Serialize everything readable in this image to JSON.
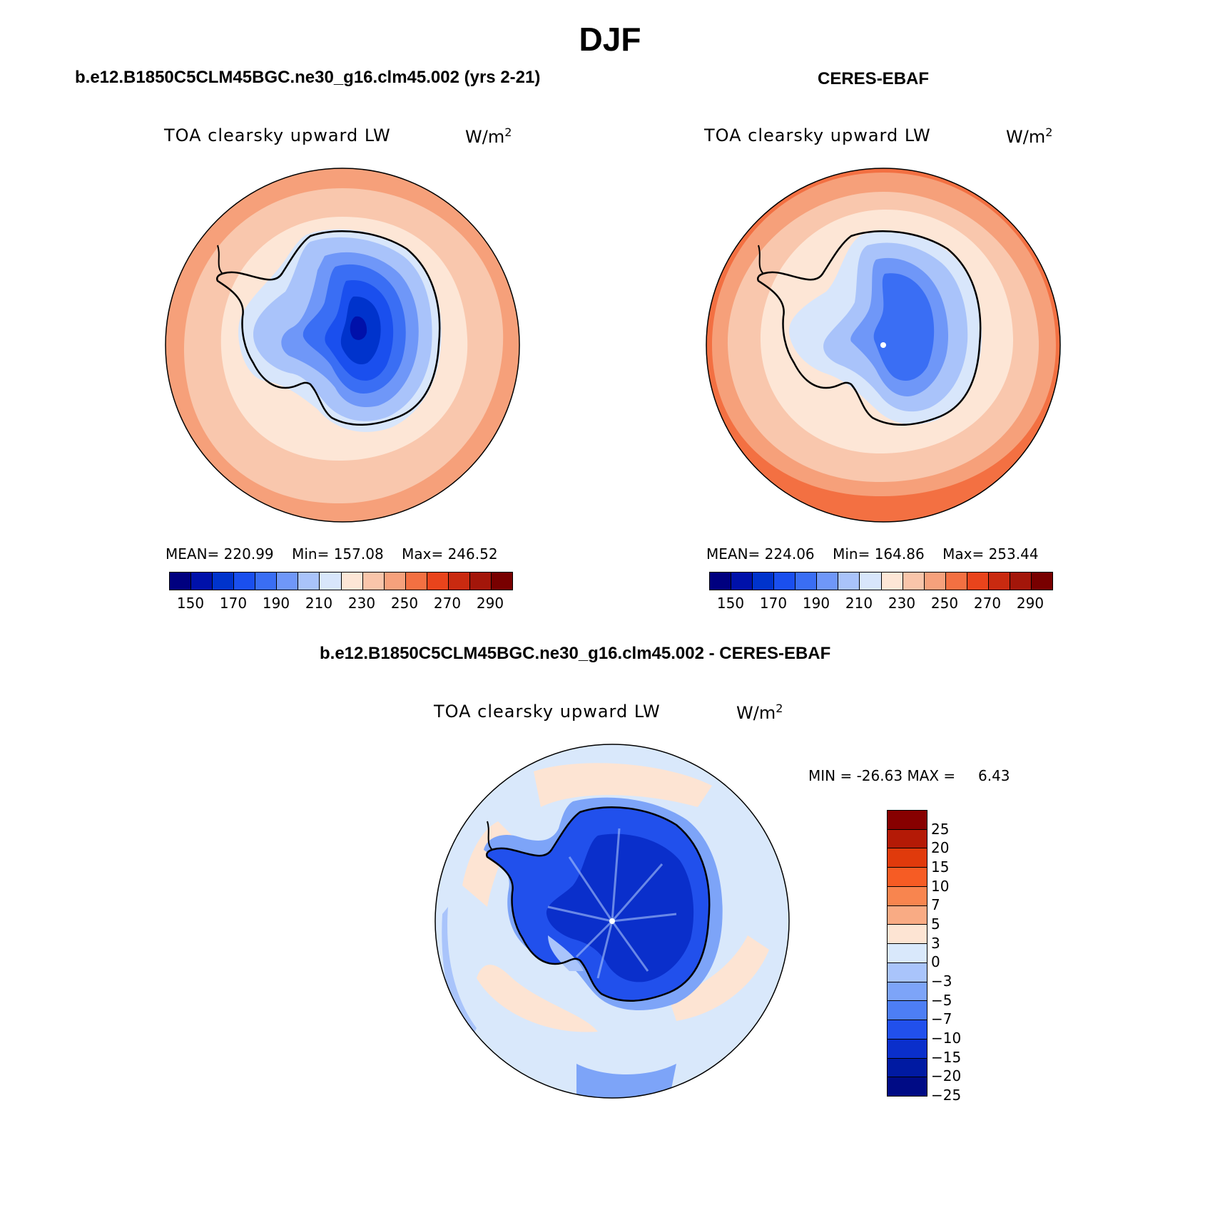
{
  "main_title": "DJF",
  "panels": [
    {
      "title": "b.e12.B1850C5CLM45BGC.ne30_g16.clm45.002 (yrs 2-21)",
      "variable": "TOA clearsky upward LW",
      "units_base": "W/m",
      "units_exp": "2",
      "stats": {
        "mean_label": "MEAN=",
        "mean": "220.99",
        "min_label": "Min=",
        "min": "157.08",
        "max_label": "Max=",
        "max": "246.52"
      }
    },
    {
      "title": "CERES-EBAF",
      "variable": "TOA clearsky upward LW",
      "units_base": "W/m",
      "units_exp": "2",
      "stats": {
        "mean_label": "MEAN=",
        "mean": "224.06",
        "min_label": "Min=",
        "min": "164.86",
        "max_label": "Max=",
        "max": "253.44"
      }
    },
    {
      "title": "b.e12.B1850C5CLM45BGC.ne30_g16.clm45.002 - CERES-EBAF",
      "variable": "TOA clearsky upward LW",
      "units_base": "W/m",
      "units_exp": "2",
      "stats": {
        "min_label": "MIN =",
        "min": "-26.63",
        "max_label": "MAX =",
        "max": "6.43"
      }
    }
  ],
  "abs_colorbar": {
    "colors": [
      "#00007f",
      "#0011aa",
      "#0033cc",
      "#1a4fee",
      "#3a6ef4",
      "#6f97f8",
      "#a9c3fa",
      "#d8e6fb",
      "#fde6d6",
      "#f9c5aa",
      "#f6a17c",
      "#f37042",
      "#e9441c",
      "#c92a10",
      "#a3160a",
      "#780000"
    ],
    "tick_labels": [
      "150",
      "170",
      "190",
      "210",
      "230",
      "250",
      "270",
      "290"
    ]
  },
  "diff_colorbar": {
    "colors": [
      "#870000",
      "#b41a06",
      "#e03a0c",
      "#f65c24",
      "#f8854f",
      "#f9ab84",
      "#fde4d3",
      "#d9e8fb",
      "#a9c4fb",
      "#7da4f8",
      "#4d7ef4",
      "#2150ec",
      "#0a2fcb",
      "#001aa2",
      "#000b85"
    ],
    "tick_labels": [
      "25",
      "20",
      "15",
      "10",
      "7",
      "5",
      "3",
      "0",
      "−3",
      "−5",
      "−7",
      "−10",
      "−15",
      "−20",
      "−25"
    ]
  },
  "map_colors": {
    "ocean_outer": "#f6a07a",
    "ocean_mid": "#f9c7ad",
    "ocean_inner": "#fde6d6",
    "ice_edge": "#d8e6fb",
    "land_1": "#a9c3fa",
    "land_2": "#6f97f8",
    "land_3": "#3a6ef4",
    "land_4": "#1a4fee",
    "land_5": "#0033cc",
    "land_6": "#0011aa",
    "diff_bg": "#d9e8fb",
    "diff_warm": "#fde4d3",
    "diff_blue1": "#a9c4fb",
    "diff_blue2": "#7da4f8",
    "diff_blue3": "#2150ec",
    "diff_blue4": "#0a2fcb"
  }
}
